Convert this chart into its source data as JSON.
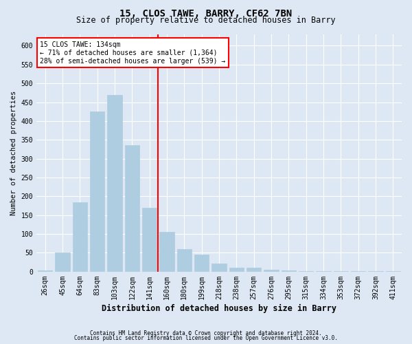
{
  "title1": "15, CLOS TAWE, BARRY, CF62 7BN",
  "title2": "Size of property relative to detached houses in Barry",
  "xlabel": "Distribution of detached houses by size in Barry",
  "ylabel": "Number of detached properties",
  "categories": [
    "26sqm",
    "45sqm",
    "64sqm",
    "83sqm",
    "103sqm",
    "122sqm",
    "141sqm",
    "160sqm",
    "180sqm",
    "199sqm",
    "218sqm",
    "238sqm",
    "257sqm",
    "276sqm",
    "295sqm",
    "315sqm",
    "334sqm",
    "353sqm",
    "372sqm",
    "392sqm",
    "411sqm"
  ],
  "values": [
    3,
    50,
    185,
    425,
    470,
    335,
    170,
    105,
    60,
    45,
    22,
    10,
    10,
    5,
    4,
    2,
    1,
    1,
    1,
    1,
    1
  ],
  "bar_color": "#aecde0",
  "bar_edgecolor": "#aecde0",
  "vline_color": "red",
  "vline_pos": 6.5,
  "annotation_text": "15 CLOS TAWE: 134sqm\n← 71% of detached houses are smaller (1,364)\n28% of semi-detached houses are larger (539) →",
  "annotation_box_facecolor": "white",
  "annotation_box_edgecolor": "red",
  "ylim": [
    0,
    630
  ],
  "yticks": [
    0,
    50,
    100,
    150,
    200,
    250,
    300,
    350,
    400,
    450,
    500,
    550,
    600
  ],
  "footnote1": "Contains HM Land Registry data © Crown copyright and database right 2024.",
  "footnote2": "Contains public sector information licensed under the Open Government Licence v3.0.",
  "bg_color": "#dde8f4",
  "plot_bg_color": "#dde8f4",
  "title1_fontsize": 10,
  "title2_fontsize": 8.5,
  "xlabel_fontsize": 8.5,
  "ylabel_fontsize": 7.5,
  "tick_fontsize": 7,
  "footnote_fontsize": 5.5
}
